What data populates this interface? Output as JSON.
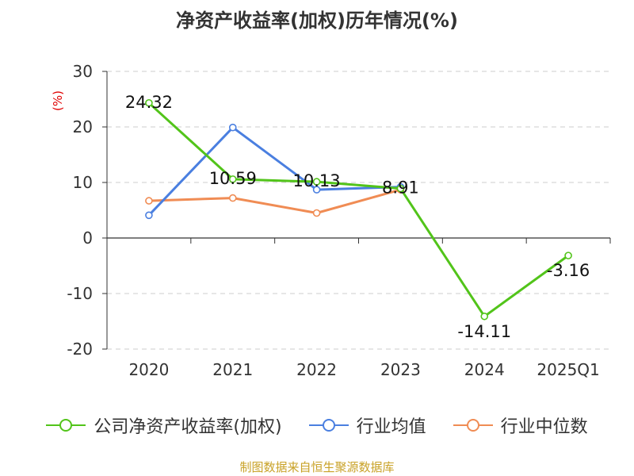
{
  "chart_data": {
    "type": "line",
    "title": "净资产收益率(加权)历年情况(%)",
    "ylabel": "(%)",
    "categories": [
      "2020",
      "2021",
      "2022",
      "2023",
      "2024",
      "2025Q1"
    ],
    "ylim": [
      -20,
      30
    ],
    "yticks": [
      30,
      20,
      10,
      0,
      -10,
      -20
    ],
    "grid": "horizontal-dashed",
    "legend_position": "bottom",
    "series": [
      {
        "name": "公司净资产收益率(加权)",
        "color": "#52c41a",
        "values": [
          24.32,
          10.59,
          10.13,
          8.91,
          -14.11,
          -3.16
        ],
        "labels": [
          "24.32",
          "10.59",
          "10.13",
          "8.91",
          "-14.11",
          "-3.16"
        ]
      },
      {
        "name": "行业均值",
        "color": "#4a7fe0",
        "values": [
          4.1,
          19.9,
          8.7,
          9.2,
          null,
          null
        ]
      },
      {
        "name": "行业中位数",
        "color": "#f08c54",
        "values": [
          6.7,
          7.2,
          4.5,
          8.7,
          null,
          null
        ]
      }
    ]
  },
  "source": "制图数据来自恒生聚源数据库",
  "colors": {
    "axis": "#333333",
    "grid": "#cccccc",
    "ylabel": "#e00000",
    "source": "#c9a227"
  }
}
